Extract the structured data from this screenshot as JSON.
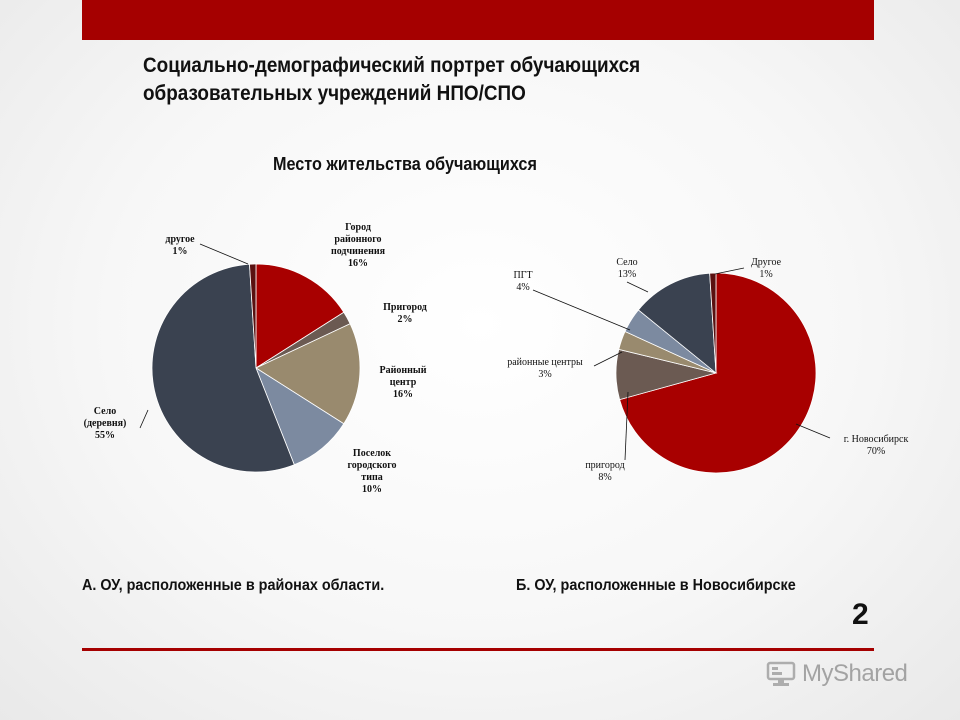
{
  "title_line1": "Социально-демографический  портрет обучающихся",
  "title_line2": "образовательных учреждений НПО/СПО",
  "chart_data": [
    {
      "type": "pie",
      "title": "Место жительства обучающихся",
      "caption": "А. ОУ, расположенные в районах области.",
      "slices": [
        {
          "label": [
            "Город",
            "районного",
            "подчинения"
          ],
          "pct": "16%",
          "value": 16,
          "color": "#a80000"
        },
        {
          "label": [
            "Пригород"
          ],
          "pct": "2%",
          "value": 2,
          "color": "#6b5a52"
        },
        {
          "label": [
            "Районный",
            "центр"
          ],
          "pct": "16%",
          "value": 16,
          "color": "#998a6e"
        },
        {
          "label": [
            "Поселок",
            "городского",
            "типа"
          ],
          "pct": "10%",
          "value": 10,
          "color": "#7c8aa0"
        },
        {
          "label": [
            "Село",
            "(деревня)"
          ],
          "pct": "55%",
          "value": 55,
          "color": "#3a4250"
        },
        {
          "label": [
            "другое"
          ],
          "pct": "1%",
          "value": 1,
          "color": "#5a1010"
        }
      ]
    },
    {
      "type": "pie",
      "caption": "Б. ОУ, расположенные в Новосибирске",
      "slices": [
        {
          "label": [
            "г. Новосибирск"
          ],
          "pct": "70%",
          "value": 70,
          "color": "#a80000"
        },
        {
          "label": [
            "пригород"
          ],
          "pct": "8%",
          "value": 8,
          "color": "#6b5a52"
        },
        {
          "label": [
            "районные центры"
          ],
          "pct": "3%",
          "value": 3,
          "color": "#998a6e"
        },
        {
          "label": [
            "ПГТ"
          ],
          "pct": "4%",
          "value": 4,
          "color": "#7c8aa0"
        },
        {
          "label": [
            "Село"
          ],
          "pct": "13%",
          "value": 13,
          "color": "#3a4250"
        },
        {
          "label": [
            "Другое"
          ],
          "pct": "1%",
          "value": 1,
          "color": "#5a1010"
        }
      ]
    }
  ],
  "page_number": "2",
  "logo_text": "MyShared",
  "colors": {
    "accent": "#a50000"
  }
}
